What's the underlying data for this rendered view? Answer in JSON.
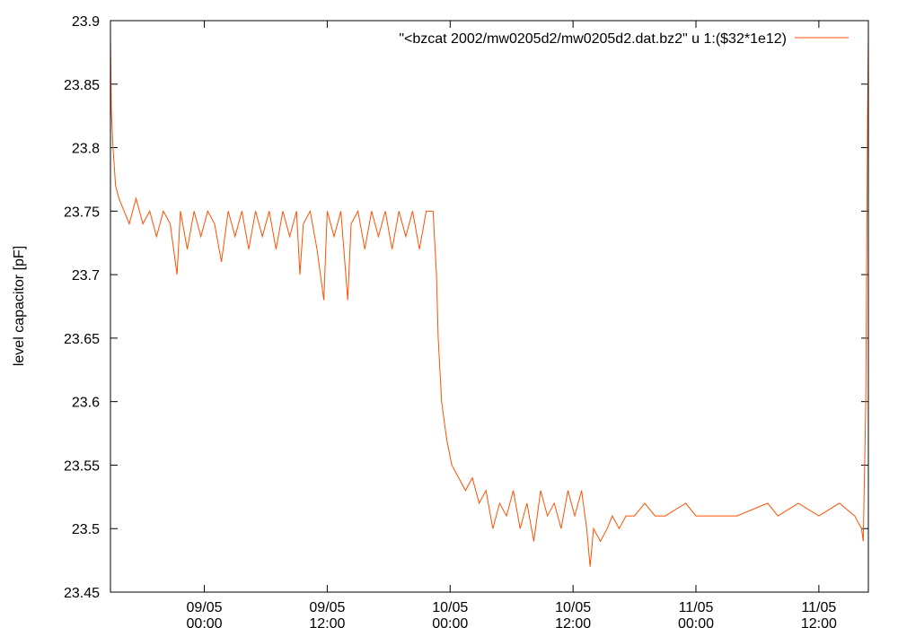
{
  "chart_data": {
    "type": "line",
    "ylabel": "level capacitor [pF]",
    "ylim": [
      23.45,
      23.9
    ],
    "yticks": [
      23.45,
      23.5,
      23.55,
      23.6,
      23.65,
      23.7,
      23.75,
      23.8,
      23.85,
      23.9
    ],
    "xlim": [
      "08/05 14:50",
      "11/05 16:50"
    ],
    "xticks": [
      "09/05 00:00",
      "09/05 12:00",
      "10/05 00:00",
      "10/05 12:00",
      "11/05 00:00",
      "11/05 12:00"
    ],
    "legend": "top-right",
    "x": [
      "08/05 14:50",
      "08/05 14:55",
      "08/05 15:05",
      "08/05 15:20",
      "08/05 15:40",
      "08/05 16:10",
      "08/05 16:40",
      "08/05 17:20",
      "08/05 18:00",
      "08/05 18:40",
      "08/05 19:20",
      "08/05 20:00",
      "08/05 20:40",
      "08/05 21:20",
      "08/05 21:40",
      "08/05 22:20",
      "08/05 23:00",
      "08/05 23:40",
      "09/05 00:20",
      "09/05 01:00",
      "09/05 01:40",
      "09/05 02:20",
      "09/05 03:00",
      "09/05 03:40",
      "09/05 04:20",
      "09/05 05:00",
      "09/05 05:40",
      "09/05 06:20",
      "09/05 07:00",
      "09/05 07:40",
      "09/05 08:20",
      "09/05 09:00",
      "09/05 09:20",
      "09/05 09:40",
      "09/05 10:20",
      "09/05 11:00",
      "09/05 11:40",
      "09/05 12:00",
      "09/05 12:40",
      "09/05 13:20",
      "09/05 14:00",
      "09/05 14:20",
      "09/05 15:00",
      "09/05 15:40",
      "09/05 16:20",
      "09/05 17:00",
      "09/05 17:40",
      "09/05 18:20",
      "09/05 19:00",
      "09/05 19:40",
      "09/05 20:20",
      "09/05 21:00",
      "09/05 21:40",
      "09/05 22:20",
      "09/05 22:40",
      "09/05 22:50",
      "09/05 23:10",
      "09/05 23:40",
      "10/05 00:10",
      "10/05 00:50",
      "10/05 01:30",
      "10/05 02:10",
      "10/05 02:50",
      "10/05 03:30",
      "10/05 04:10",
      "10/05 04:50",
      "10/05 05:30",
      "10/05 06:10",
      "10/05 06:50",
      "10/05 07:30",
      "10/05 08:10",
      "10/05 08:50",
      "10/05 09:30",
      "10/05 10:10",
      "10/05 10:50",
      "10/05 11:30",
      "10/05 12:10",
      "10/05 12:50",
      "10/05 13:20",
      "10/05 13:40",
      "10/05 14:00",
      "10/05 14:40",
      "10/05 15:20",
      "10/05 15:50",
      "10/05 16:30",
      "10/05 17:10",
      "10/05 18:00",
      "10/05 19:00",
      "10/05 20:00",
      "10/05 21:00",
      "10/05 23:00",
      "11/05 00:00",
      "11/05 04:00",
      "11/05 07:00",
      "11/05 08:00",
      "11/05 10:00",
      "11/05 12:00",
      "11/05 14:00",
      "11/05 15:30",
      "11/05 16:10",
      "11/05 16:20",
      "11/05 16:35",
      "11/05 16:45",
      "11/05 16:50"
    ],
    "series": [
      {
        "name": "\"<bzcat 2002/mw0205d2/mw0205d2.dat.bz2\" u 1:($32*1e12)",
        "color": "#ff5000",
        "values": [
          23.89,
          23.83,
          23.8,
          23.77,
          23.76,
          23.75,
          23.74,
          23.76,
          23.74,
          23.75,
          23.73,
          23.75,
          23.74,
          23.7,
          23.75,
          23.72,
          23.75,
          23.73,
          23.75,
          23.74,
          23.71,
          23.75,
          23.73,
          23.75,
          23.72,
          23.75,
          23.73,
          23.75,
          23.72,
          23.75,
          23.73,
          23.75,
          23.7,
          23.74,
          23.75,
          23.72,
          23.68,
          23.75,
          23.73,
          23.75,
          23.68,
          23.74,
          23.75,
          23.72,
          23.75,
          23.73,
          23.75,
          23.72,
          23.75,
          23.73,
          23.75,
          23.72,
          23.75,
          23.75,
          23.7,
          23.65,
          23.6,
          23.57,
          23.55,
          23.54,
          23.53,
          23.54,
          23.52,
          23.53,
          23.5,
          23.52,
          23.51,
          23.53,
          23.5,
          23.52,
          23.49,
          23.53,
          23.51,
          23.52,
          23.5,
          23.53,
          23.51,
          23.53,
          23.5,
          23.47,
          23.5,
          23.49,
          23.5,
          23.51,
          23.5,
          23.51,
          23.51,
          23.52,
          23.51,
          23.51,
          23.52,
          23.51,
          23.51,
          23.52,
          23.51,
          23.52,
          23.51,
          23.52,
          23.51,
          23.5,
          23.49,
          23.6,
          23.82,
          23.89
        ]
      }
    ]
  }
}
